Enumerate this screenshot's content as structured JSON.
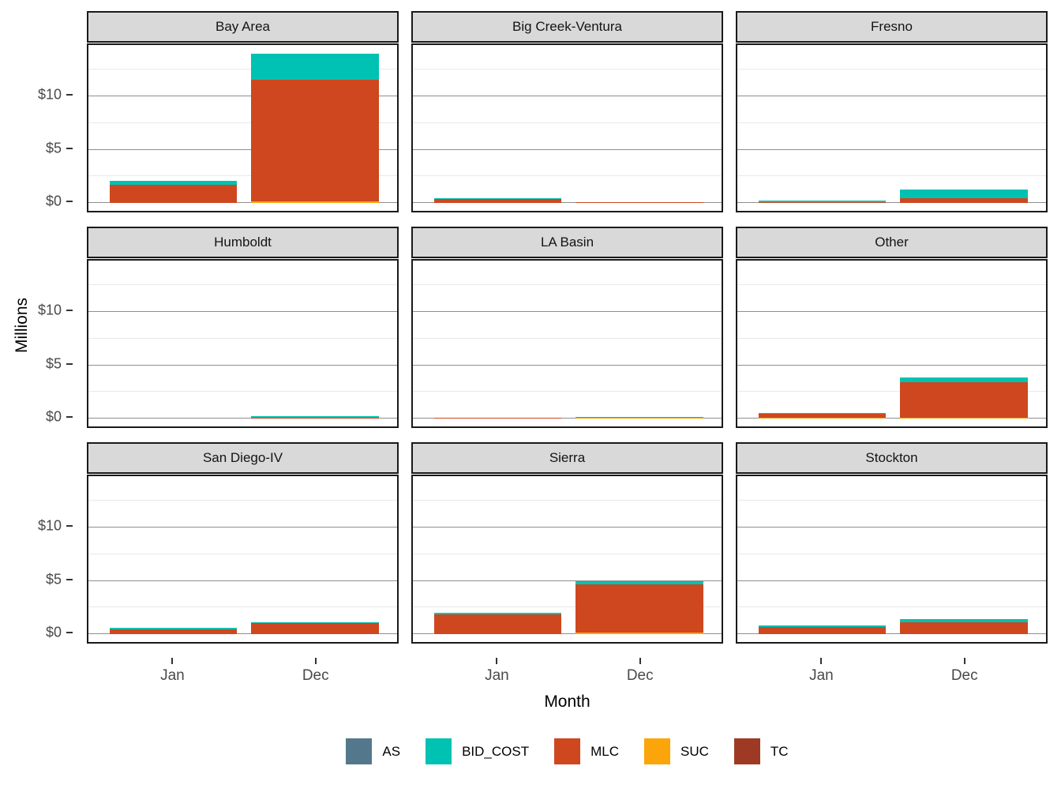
{
  "chart_data": {
    "type": "bar",
    "stacked": true,
    "title": "",
    "xlabel": "Month",
    "ylabel": "Millions",
    "x_categories": [
      "Jan",
      "Dec"
    ],
    "y_ticks": [
      {
        "label": "$0",
        "value": 0
      },
      {
        "label": "$5",
        "value": 5
      },
      {
        "label": "$10",
        "value": 10
      }
    ],
    "y_minor_values": [
      2.5,
      7.5,
      12.5
    ],
    "ylim": [
      -0.72,
      14.8
    ],
    "legend": [
      "AS",
      "BID_COST",
      "MLC",
      "SUC",
      "TC"
    ],
    "colors": {
      "AS": "#53788C",
      "BID_COST": "#00C2B2",
      "MLC": "#CE471F",
      "SUC": "#FCA50A",
      "TC": "#9E3A24"
    },
    "stack_order_bottom_to_top": [
      "TC",
      "SUC",
      "MLC",
      "BID_COST",
      "AS"
    ],
    "facets": [
      {
        "name": "Bay Area",
        "bars": {
          "Jan": {
            "AS": 0,
            "BID_COST": 0.35,
            "MLC": 1.73,
            "SUC": 0,
            "TC": 0
          },
          "Dec": {
            "AS": 0,
            "BID_COST": 2.45,
            "MLC": 11.4,
            "SUC": 0.15,
            "TC": 0
          }
        }
      },
      {
        "name": "Big Creek-Ventura",
        "bars": {
          "Jan": {
            "AS": 0,
            "BID_COST": 0.07,
            "MLC": 0.4,
            "SUC": 0,
            "TC": 0
          },
          "Dec": {
            "AS": 0,
            "BID_COST": 0,
            "MLC": 0.12,
            "SUC": 0,
            "TC": 0
          }
        }
      },
      {
        "name": "Fresno",
        "bars": {
          "Jan": {
            "AS": 0,
            "BID_COST": 0.05,
            "MLC": 0.13,
            "SUC": 0,
            "TC": 0
          },
          "Dec": {
            "AS": 0,
            "BID_COST": 0.8,
            "MLC": 0.5,
            "SUC": 0,
            "TC": 0
          }
        }
      },
      {
        "name": "Humboldt",
        "bars": {
          "Jan": {
            "AS": 0,
            "BID_COST": 0,
            "MLC": 0,
            "SUC": 0,
            "TC": 0
          },
          "Dec": {
            "AS": 0,
            "BID_COST": 0.05,
            "MLC": 0.13,
            "SUC": 0,
            "TC": 0
          }
        }
      },
      {
        "name": "LA Basin",
        "bars": {
          "Jan": {
            "AS": 0,
            "BID_COST": 0,
            "MLC": 0.04,
            "SUC": 0,
            "TC": 0
          },
          "Dec": {
            "AS": 0,
            "BID_COST": 0.06,
            "MLC": 0,
            "SUC": 0.06,
            "TC": 0
          }
        }
      },
      {
        "name": "Other",
        "bars": {
          "Jan": {
            "AS": 0,
            "BID_COST": 0.1,
            "MLC": 0.38,
            "SUC": 0.08,
            "TC": 0
          },
          "Dec": {
            "AS": 0,
            "BID_COST": 0.5,
            "MLC": 3.3,
            "SUC": 0.1,
            "TC": 0
          }
        }
      },
      {
        "name": "San Diego-IV",
        "bars": {
          "Jan": {
            "AS": 0,
            "BID_COST": 0.07,
            "MLC": 0.5,
            "SUC": 0,
            "TC": 0
          },
          "Dec": {
            "AS": 0,
            "BID_COST": 0.08,
            "MLC": 1.05,
            "SUC": 0,
            "TC": 0
          }
        }
      },
      {
        "name": "Sierra",
        "bars": {
          "Jan": {
            "AS": 0,
            "BID_COST": 0.2,
            "MLC": 1.85,
            "SUC": 0,
            "TC": 0
          },
          "Dec": {
            "AS": 0,
            "BID_COST": 0.35,
            "MLC": 4.45,
            "SUC": 0.2,
            "TC": 0
          }
        }
      },
      {
        "name": "Stockton",
        "bars": {
          "Jan": {
            "AS": 0,
            "BID_COST": 0.15,
            "MLC": 0.65,
            "SUC": 0.05,
            "TC": 0
          },
          "Dec": {
            "AS": 0,
            "BID_COST": 0.3,
            "MLC": 1.1,
            "SUC": 0.05,
            "TC": 0
          }
        }
      }
    ]
  }
}
